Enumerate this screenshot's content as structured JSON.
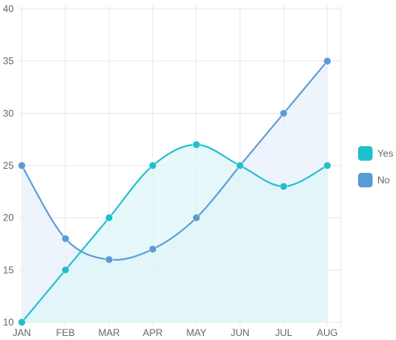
{
  "chart_data": {
    "type": "area",
    "categories": [
      "JAN",
      "FEB",
      "MAR",
      "APR",
      "MAY",
      "JUN",
      "JUL",
      "AUG"
    ],
    "series": [
      {
        "name": "Yes",
        "values": [
          10,
          15,
          20,
          25,
          27,
          25,
          23,
          25
        ],
        "color": "#1EC0CC",
        "fill": "#DDF5F8",
        "curve": "smooth"
      },
      {
        "name": "No",
        "values": [
          25,
          18,
          16,
          17,
          20,
          25,
          30,
          35
        ],
        "color": "#5B9BD5",
        "fill": "#E8F0FB",
        "curve": "smooth-then-straight"
      }
    ],
    "ylim": [
      10,
      40
    ],
    "yticks": [
      10,
      15,
      20,
      25,
      30,
      35,
      40
    ],
    "grid": true,
    "legend_position": "right",
    "title": "",
    "xlabel": "",
    "ylabel": ""
  }
}
